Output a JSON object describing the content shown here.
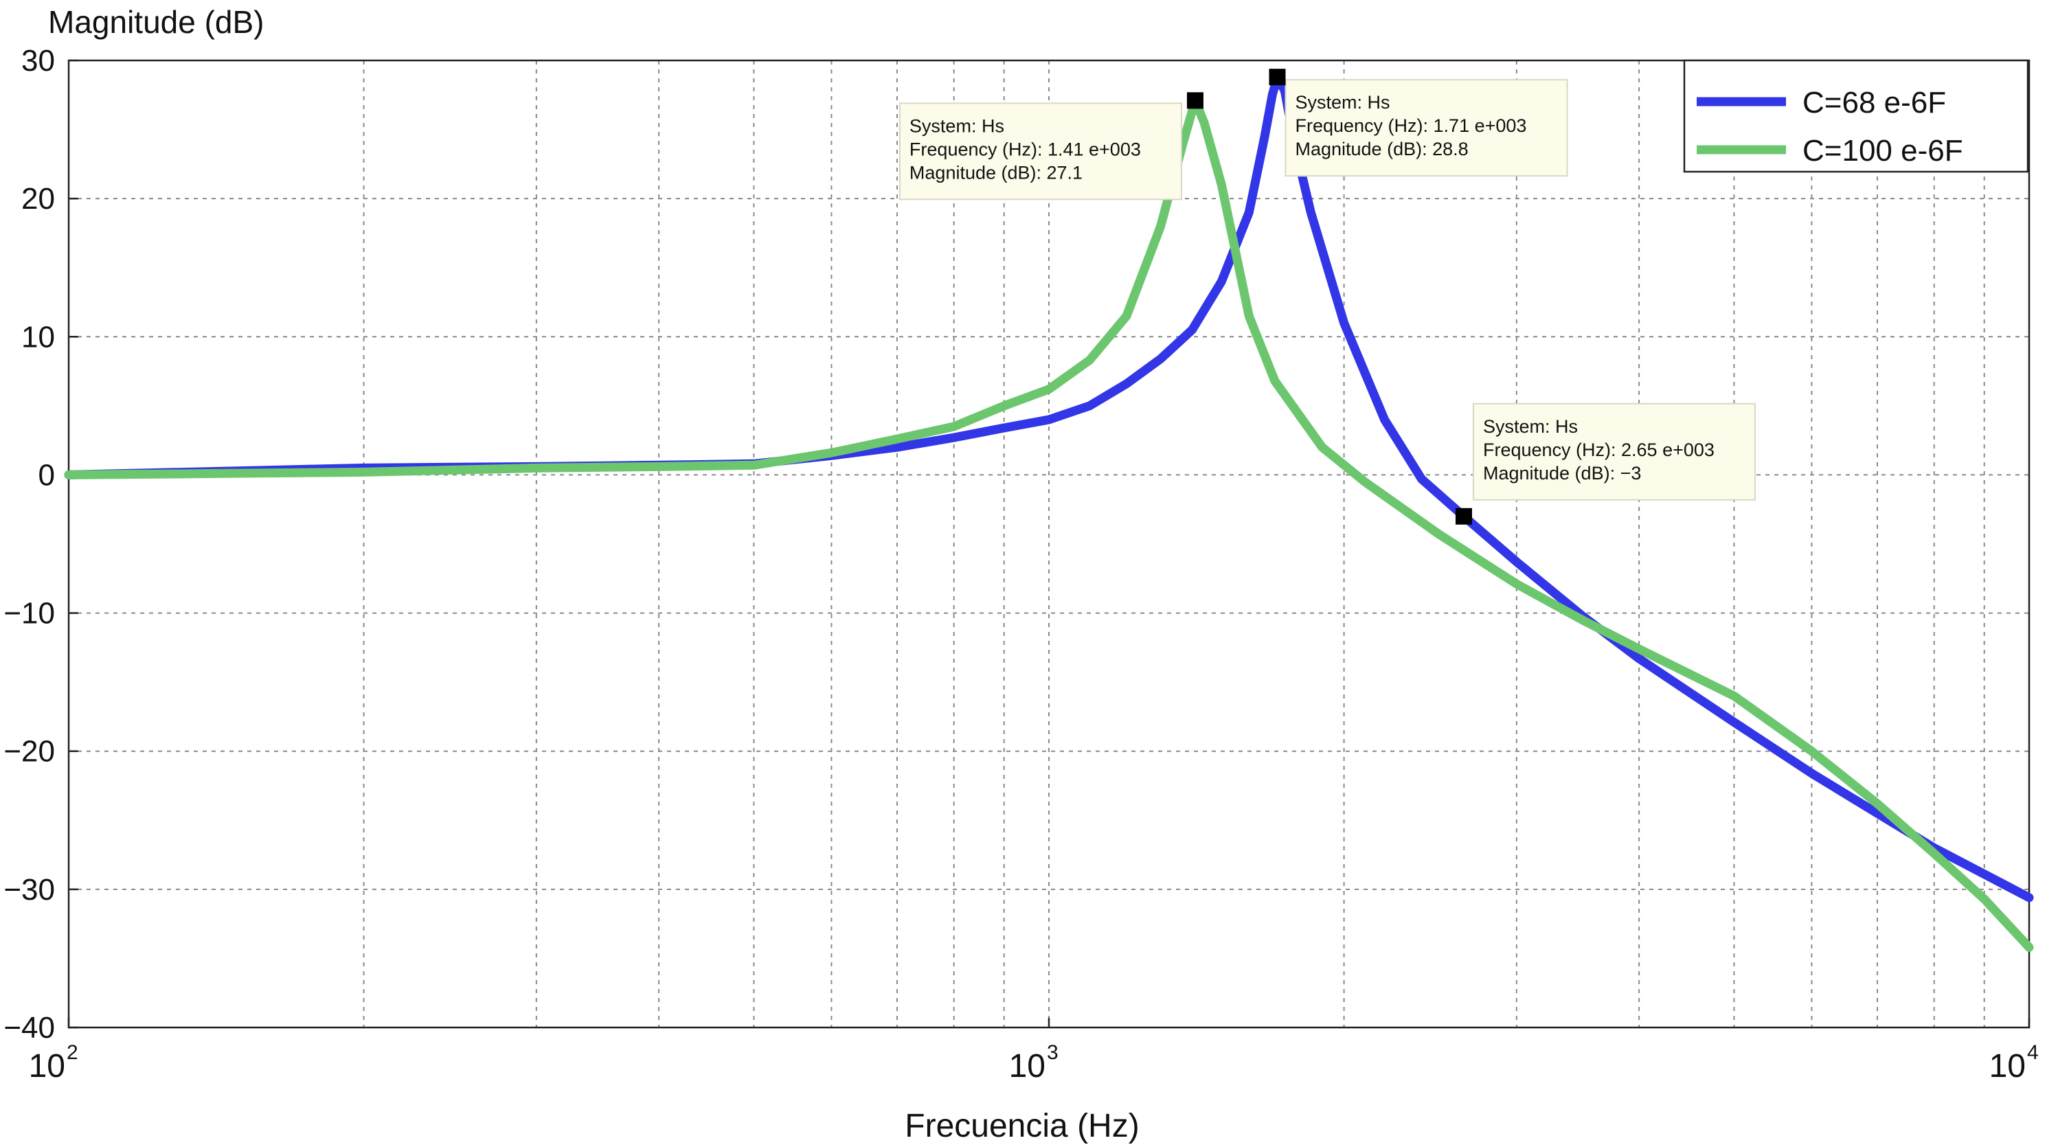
{
  "chart_data": {
    "type": "line",
    "ylabel": "Magnitude (dB)",
    "xlabel": "Frecuencia (Hz)",
    "x_scale": "log",
    "xlim": [
      100,
      10000
    ],
    "ylim": [
      -40,
      30
    ],
    "grid": true,
    "legend_position": "top-right",
    "y_ticks": [
      {
        "value": 30,
        "label": "30"
      },
      {
        "value": 20,
        "label": "20"
      },
      {
        "value": 10,
        "label": "10"
      },
      {
        "value": 0,
        "label": "0"
      },
      {
        "value": -10,
        "label": "−10"
      },
      {
        "value": -20,
        "label": "−20"
      },
      {
        "value": -30,
        "label": "−30"
      },
      {
        "value": -40,
        "label": "−40"
      }
    ],
    "x_ticks": [
      {
        "value": 100,
        "base": "10",
        "exp": "2"
      },
      {
        "value": 1000,
        "base": "10",
        "exp": "3"
      },
      {
        "value": 10000,
        "base": "10",
        "exp": "4"
      }
    ],
    "series": [
      {
        "name": "C=68 e-6F",
        "color": "#3236e6",
        "points": [
          [
            100,
            0
          ],
          [
            200,
            0.5
          ],
          [
            300,
            0.6
          ],
          [
            400,
            0.7
          ],
          [
            500,
            0.8
          ],
          [
            600,
            1.4
          ],
          [
            700,
            2.0
          ],
          [
            800,
            2.7
          ],
          [
            900,
            3.4
          ],
          [
            1000,
            4.0
          ],
          [
            1100,
            5.0
          ],
          [
            1200,
            6.6
          ],
          [
            1300,
            8.4
          ],
          [
            1400,
            10.5
          ],
          [
            1500,
            14.0
          ],
          [
            1600,
            19.0
          ],
          [
            1660,
            24.5
          ],
          [
            1690,
            27.5
          ],
          [
            1710,
            28.8
          ],
          [
            1740,
            27.8
          ],
          [
            1780,
            24.0
          ],
          [
            1850,
            19.0
          ],
          [
            2000,
            11.0
          ],
          [
            2200,
            4.0
          ],
          [
            2400,
            -0.3
          ],
          [
            2650,
            -3.0
          ],
          [
            3000,
            -6.3
          ],
          [
            3500,
            -10.2
          ],
          [
            4000,
            -13.3
          ],
          [
            5000,
            -17.9
          ],
          [
            6000,
            -21.6
          ],
          [
            7000,
            -24.5
          ],
          [
            8000,
            -27.0
          ],
          [
            9000,
            -28.9
          ],
          [
            10000,
            -30.6
          ]
        ]
      },
      {
        "name": "C=100 e-6F",
        "color": "#6cc66e",
        "points": [
          [
            100,
            0
          ],
          [
            200,
            0.2
          ],
          [
            300,
            0.5
          ],
          [
            400,
            0.6
          ],
          [
            500,
            0.7
          ],
          [
            600,
            1.6
          ],
          [
            700,
            2.6
          ],
          [
            800,
            3.5
          ],
          [
            900,
            5.0
          ],
          [
            1000,
            6.2
          ],
          [
            1100,
            8.3
          ],
          [
            1200,
            11.5
          ],
          [
            1300,
            18.0
          ],
          [
            1370,
            24.0
          ],
          [
            1410,
            27.1
          ],
          [
            1440,
            25.5
          ],
          [
            1500,
            21.0
          ],
          [
            1600,
            11.5
          ],
          [
            1700,
            6.8
          ],
          [
            1900,
            2.0
          ],
          [
            2100,
            -0.5
          ],
          [
            2500,
            -4.3
          ],
          [
            3000,
            -7.9
          ],
          [
            3500,
            -10.5
          ],
          [
            4000,
            -12.6
          ],
          [
            5000,
            -16.0
          ],
          [
            6000,
            -20.0
          ],
          [
            7000,
            -23.8
          ],
          [
            8000,
            -27.4
          ],
          [
            9000,
            -30.7
          ],
          [
            10000,
            -34.2
          ]
        ]
      }
    ],
    "annotations": [
      {
        "x": 1410,
        "y": 27.1,
        "anchor": "left",
        "lines": [
          "System: Hs",
          "Frequency (Hz): 1.41 e+003",
          "Magnitude (dB): 27.1"
        ]
      },
      {
        "x": 1710,
        "y": 28.8,
        "anchor": "right",
        "lines": [
          "System: Hs",
          "Frequency (Hz): 1.71 e+003",
          "Magnitude (dB): 28.8"
        ]
      },
      {
        "x": 2650,
        "y": -3.0,
        "anchor": "right-above",
        "lines": [
          "System: Hs",
          "Frequency (Hz): 2.65 e+003",
          "Magnitude (dB): −3"
        ]
      }
    ]
  }
}
